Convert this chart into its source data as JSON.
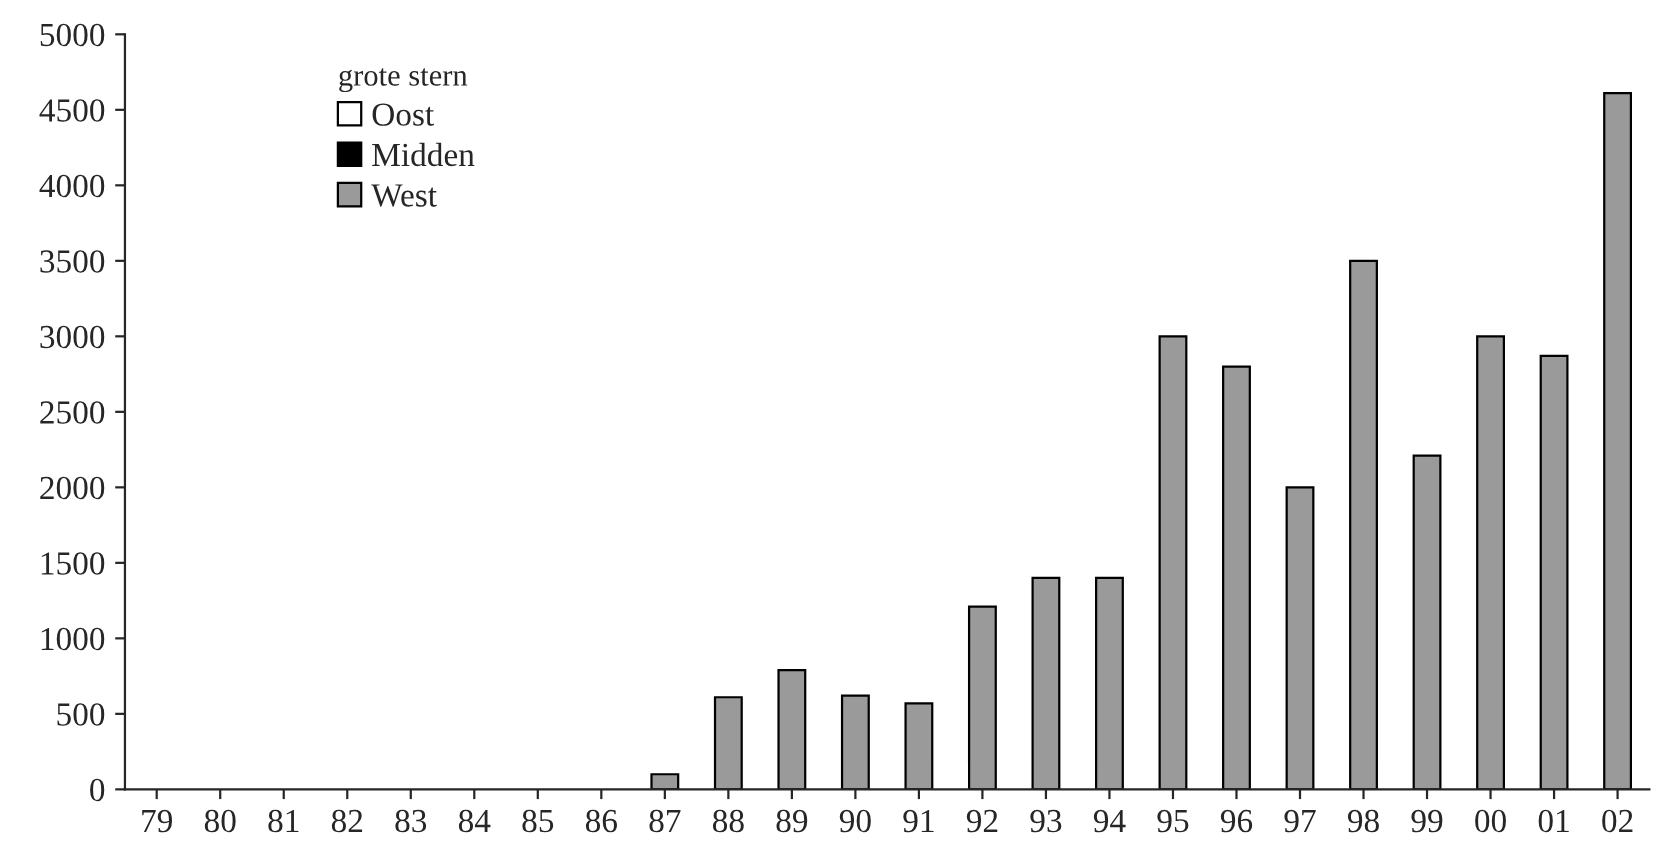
{
  "chart_data": {
    "type": "bar",
    "legend_title": "grote stern",
    "legend": "top left",
    "categories": [
      "79",
      "80",
      "81",
      "82",
      "83",
      "84",
      "85",
      "86",
      "87",
      "88",
      "89",
      "90",
      "91",
      "92",
      "93",
      "94",
      "95",
      "96",
      "97",
      "98",
      "99",
      "00",
      "01",
      "02"
    ],
    "series": [
      {
        "name": "Oost",
        "color": "#ffffff",
        "values": [
          null,
          null,
          null,
          null,
          null,
          null,
          null,
          null,
          null,
          null,
          null,
          null,
          null,
          null,
          null,
          null,
          null,
          null,
          null,
          null,
          null,
          null,
          null,
          null
        ]
      },
      {
        "name": "Midden",
        "color": "#000000",
        "values": [
          null,
          null,
          null,
          null,
          null,
          null,
          null,
          null,
          null,
          null,
          null,
          null,
          null,
          null,
          null,
          null,
          null,
          null,
          null,
          null,
          null,
          null,
          null,
          null
        ]
      },
      {
        "name": "West",
        "color": "#9a9a9a",
        "values": [
          0,
          0,
          0,
          0,
          0,
          0,
          0,
          0,
          100,
          610,
          790,
          620,
          570,
          1210,
          1400,
          1400,
          3000,
          2800,
          2000,
          3500,
          2210,
          3000,
          2870,
          4610
        ]
      }
    ],
    "ylim": [
      0,
      5000
    ],
    "yticks": [
      0,
      500,
      1000,
      1500,
      2000,
      2500,
      3000,
      3500,
      4000,
      4500,
      5000
    ],
    "grid": false
  }
}
